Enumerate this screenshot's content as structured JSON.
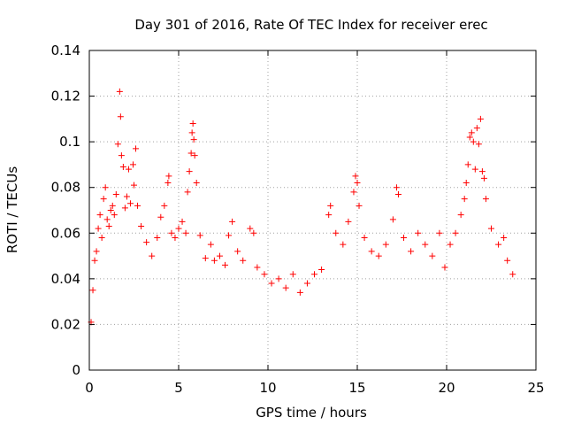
{
  "chart_data": {
    "type": "scatter",
    "title": "Day 301 of 2016, Rate Of TEC Index for receiver erec",
    "xlabel": "GPS time / hours",
    "ylabel": "ROTI / TECUs",
    "xlim": [
      0,
      25
    ],
    "ylim": [
      0,
      0.14
    ],
    "xticks": [
      0,
      5,
      10,
      15,
      20,
      25
    ],
    "xtick_labels": [
      "0",
      "5",
      "10",
      "15",
      "20",
      "25"
    ],
    "yticks": [
      0,
      0.02,
      0.04,
      0.06,
      0.08,
      0.1,
      0.12,
      0.14
    ],
    "ytick_labels": [
      "0",
      "0.02",
      "0.04",
      "0.06",
      "0.08",
      "0.1",
      "0.12",
      "0.14"
    ],
    "grid": true,
    "marker": "+",
    "color": "#ff0000",
    "series": [
      {
        "name": "ROTI",
        "points": [
          [
            0.1,
            0.021
          ],
          [
            0.2,
            0.035
          ],
          [
            0.3,
            0.048
          ],
          [
            0.4,
            0.052
          ],
          [
            0.5,
            0.062
          ],
          [
            0.6,
            0.068
          ],
          [
            0.7,
            0.058
          ],
          [
            0.8,
            0.075
          ],
          [
            0.9,
            0.08
          ],
          [
            1.0,
            0.066
          ],
          [
            1.1,
            0.063
          ],
          [
            1.2,
            0.07
          ],
          [
            1.3,
            0.072
          ],
          [
            1.4,
            0.068
          ],
          [
            1.5,
            0.077
          ],
          [
            1.6,
            0.099
          ],
          [
            1.7,
            0.122
          ],
          [
            1.75,
            0.111
          ],
          [
            1.8,
            0.094
          ],
          [
            1.9,
            0.089
          ],
          [
            2.0,
            0.071
          ],
          [
            2.1,
            0.076
          ],
          [
            2.2,
            0.088
          ],
          [
            2.3,
            0.073
          ],
          [
            2.45,
            0.09
          ],
          [
            2.5,
            0.081
          ],
          [
            2.6,
            0.097
          ],
          [
            2.7,
            0.072
          ],
          [
            2.9,
            0.063
          ],
          [
            3.2,
            0.056
          ],
          [
            3.5,
            0.05
          ],
          [
            3.8,
            0.058
          ],
          [
            4.0,
            0.067
          ],
          [
            4.2,
            0.072
          ],
          [
            4.4,
            0.082
          ],
          [
            4.45,
            0.085
          ],
          [
            4.6,
            0.06
          ],
          [
            4.8,
            0.058
          ],
          [
            5.0,
            0.062
          ],
          [
            5.2,
            0.065
          ],
          [
            5.4,
            0.06
          ],
          [
            5.5,
            0.078
          ],
          [
            5.6,
            0.087
          ],
          [
            5.7,
            0.095
          ],
          [
            5.75,
            0.104
          ],
          [
            5.8,
            0.108
          ],
          [
            5.85,
            0.101
          ],
          [
            5.9,
            0.094
          ],
          [
            6.0,
            0.082
          ],
          [
            6.2,
            0.059
          ],
          [
            6.5,
            0.049
          ],
          [
            6.8,
            0.055
          ],
          [
            7.0,
            0.048
          ],
          [
            7.3,
            0.05
          ],
          [
            7.6,
            0.046
          ],
          [
            7.8,
            0.059
          ],
          [
            8.0,
            0.065
          ],
          [
            8.3,
            0.052
          ],
          [
            8.6,
            0.048
          ],
          [
            9.0,
            0.062
          ],
          [
            9.2,
            0.06
          ],
          [
            9.4,
            0.045
          ],
          [
            9.8,
            0.042
          ],
          [
            10.2,
            0.038
          ],
          [
            10.6,
            0.04
          ],
          [
            11.0,
            0.036
          ],
          [
            11.4,
            0.042
          ],
          [
            11.8,
            0.034
          ],
          [
            12.2,
            0.038
          ],
          [
            12.6,
            0.042
          ],
          [
            13.0,
            0.044
          ],
          [
            13.4,
            0.068
          ],
          [
            13.5,
            0.072
          ],
          [
            13.8,
            0.06
          ],
          [
            14.2,
            0.055
          ],
          [
            14.5,
            0.065
          ],
          [
            14.8,
            0.078
          ],
          [
            14.9,
            0.085
          ],
          [
            15.0,
            0.082
          ],
          [
            15.1,
            0.072
          ],
          [
            15.4,
            0.058
          ],
          [
            15.8,
            0.052
          ],
          [
            16.2,
            0.05
          ],
          [
            16.6,
            0.055
          ],
          [
            17.0,
            0.066
          ],
          [
            17.2,
            0.08
          ],
          [
            17.3,
            0.077
          ],
          [
            17.6,
            0.058
          ],
          [
            18.0,
            0.052
          ],
          [
            18.4,
            0.06
          ],
          [
            18.8,
            0.055
          ],
          [
            19.2,
            0.05
          ],
          [
            19.6,
            0.06
          ],
          [
            19.9,
            0.045
          ],
          [
            20.2,
            0.055
          ],
          [
            20.5,
            0.06
          ],
          [
            20.8,
            0.068
          ],
          [
            21.0,
            0.075
          ],
          [
            21.1,
            0.082
          ],
          [
            21.2,
            0.09
          ],
          [
            21.3,
            0.102
          ],
          [
            21.4,
            0.104
          ],
          [
            21.5,
            0.1
          ],
          [
            21.6,
            0.088
          ],
          [
            21.7,
            0.106
          ],
          [
            21.8,
            0.099
          ],
          [
            21.9,
            0.11
          ],
          [
            22.0,
            0.087
          ],
          [
            22.1,
            0.084
          ],
          [
            22.2,
            0.075
          ],
          [
            22.5,
            0.062
          ],
          [
            22.9,
            0.055
          ],
          [
            23.2,
            0.058
          ],
          [
            23.4,
            0.048
          ],
          [
            23.7,
            0.042
          ]
        ]
      }
    ]
  }
}
